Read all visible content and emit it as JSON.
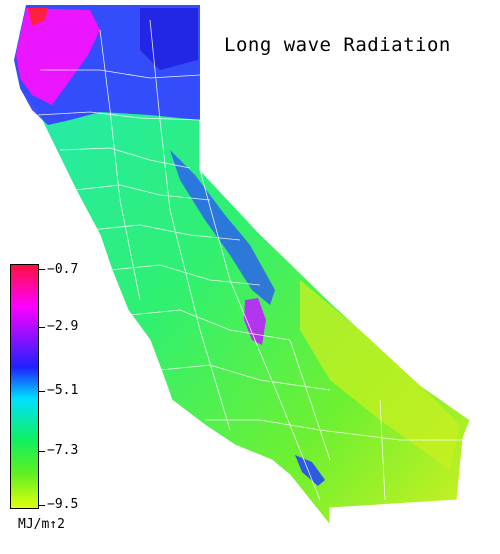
{
  "title": "Long wave Radiation",
  "legend": {
    "ticks": [
      "−0.7",
      "−2.9",
      "−5.1",
      "−7.3",
      "−9.5"
    ],
    "unit": "MJ/m↑2",
    "colors": [
      "#ff1040",
      "#ff00ff",
      "#2020ff",
      "#00e0ff",
      "#10f060",
      "#60f020",
      "#e0ff10"
    ]
  },
  "map_colors": {
    "north_high": "#ff10ff",
    "north_mid": "#3040ff",
    "mountains": "#2040ff",
    "coast": "#20e8a0",
    "central": "#40f060",
    "desert": "#c8f020"
  }
}
